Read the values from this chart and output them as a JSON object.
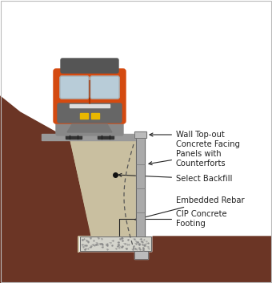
{
  "bg_color": "#ffffff",
  "soil_color": "#6B3525",
  "backfill_color": "#C9BFA0",
  "concrete_panel_color": "#AAAAAA",
  "concrete_panel_light": "#C8C8C8",
  "footing_color": "#D4D4CC",
  "footing_dot_color": "#888888",
  "train_orange": "#D44A10",
  "train_gray": "#888888",
  "train_dark_gray": "#555555",
  "train_window": "#B8CCD8",
  "train_window_frame": "#AAAAAA",
  "platform_color": "#999999",
  "label_fontsize": 7.2,
  "label_color": "#222222",
  "labels": {
    "wall_topout": "Wall Top-out",
    "facing_panels": "Concrete Facing\nPanels with\nCounterforts",
    "backfill": "Select Backfill",
    "rebar": "Embedded Rebar",
    "footing": "CIP Concrete\nFooting"
  }
}
